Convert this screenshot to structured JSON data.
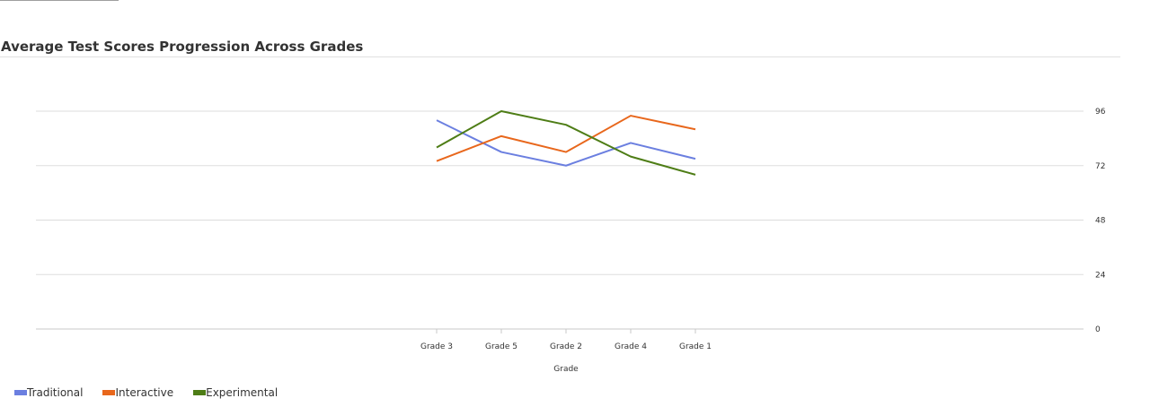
{
  "chart_data": {
    "type": "line",
    "title": "Average Test Scores Progression Across Grades",
    "xlabel": "Grade",
    "ylabel": "",
    "categories": [
      "Grade 3",
      "Grade 5",
      "Grade 2",
      "Grade 4",
      "Grade 1"
    ],
    "ylim": [
      0,
      96
    ],
    "yticks": [
      0,
      24,
      48,
      72,
      96
    ],
    "grid": true,
    "y_axis_side": "right",
    "legend_position": "bottom-left",
    "series": [
      {
        "name": "Traditional",
        "color": "#6b7fe0",
        "values": [
          92,
          78,
          72,
          82,
          75
        ]
      },
      {
        "name": "Interactive",
        "color": "#e8671c",
        "values": [
          74,
          85,
          78,
          94,
          88
        ]
      },
      {
        "name": "Experimental",
        "color": "#4e7d16",
        "values": [
          80,
          96,
          90,
          76,
          68
        ]
      }
    ]
  }
}
